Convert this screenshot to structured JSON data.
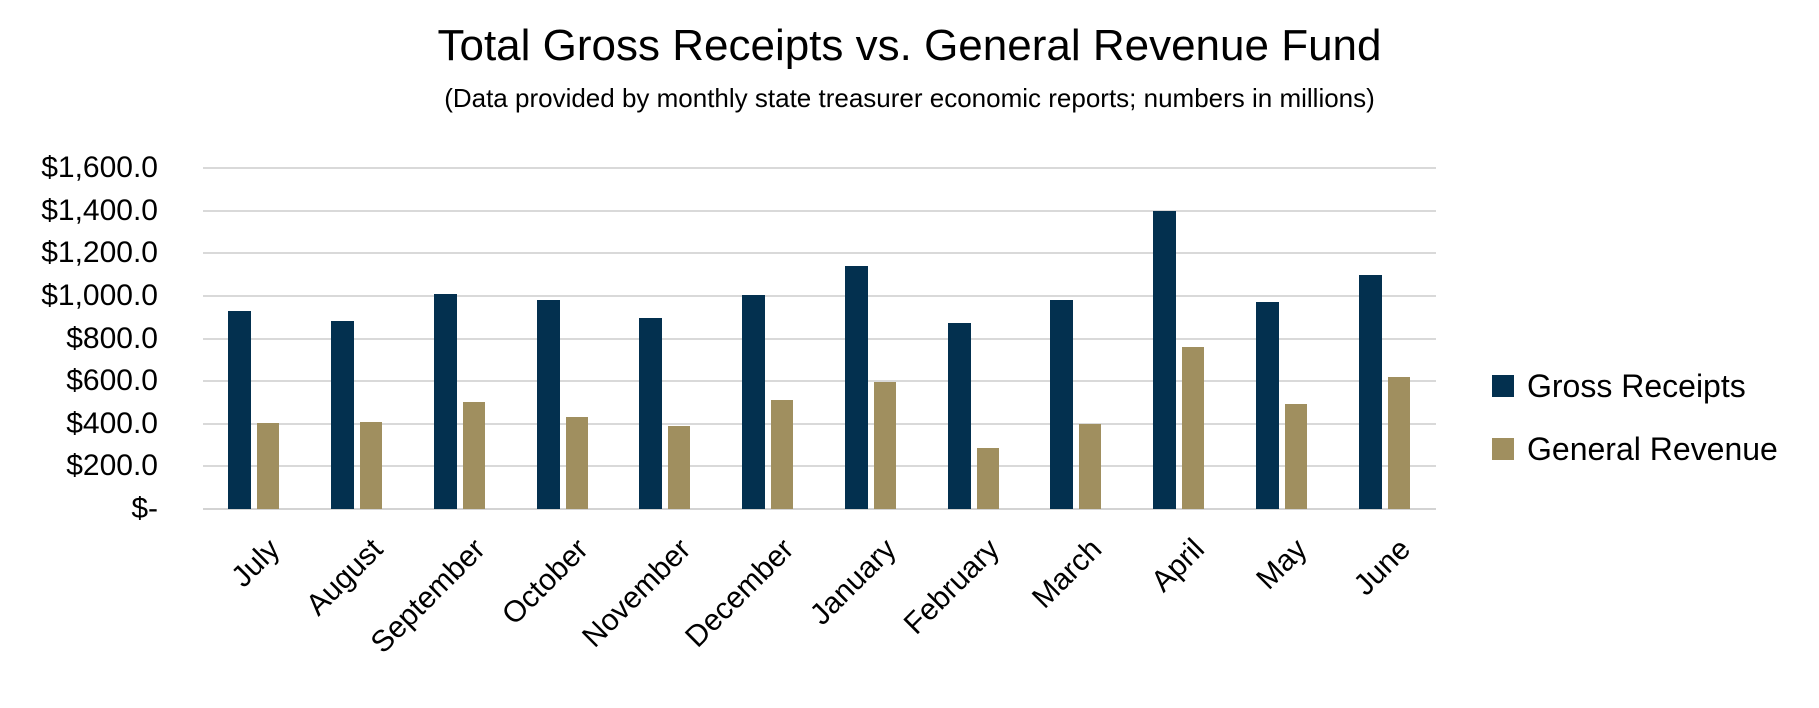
{
  "title": "Total Gross Receipts vs. General Revenue Fund",
  "subtitle": "(Data provided by monthly state treasurer economic reports; numbers in millions)",
  "legend": {
    "items": [
      {
        "label": "Gross Receipts",
        "color": "#03304F"
      },
      {
        "label": "General Revenue",
        "color": "#A08F5F"
      }
    ]
  },
  "colors": {
    "gross_receipts": "#03304F",
    "general_revenue": "#A08F5F",
    "gridline": "#D9D9D9",
    "axis_line": "#D3D3D3",
    "text": "#000000",
    "background": "#FFFFFF"
  },
  "chart_data": {
    "type": "bar",
    "title": "Total Gross Receipts vs. General Revenue Fund",
    "subtitle": "(Data provided by monthly state treasurer economic reports; numbers in millions)",
    "categories": [
      "July",
      "August",
      "September",
      "October",
      "November",
      "December",
      "January",
      "February",
      "March",
      "April",
      "May",
      "June"
    ],
    "series": [
      {
        "name": "Gross Receipts",
        "color": "#03304F",
        "values": [
          930,
          880,
          1010,
          980,
          895,
          1005,
          1140,
          875,
          980,
          1400,
          970,
          1100
        ]
      },
      {
        "name": "General Revenue",
        "color": "#A08F5F",
        "values": [
          405,
          410,
          500,
          430,
          390,
          510,
          595,
          285,
          400,
          760,
          495,
          620
        ]
      }
    ],
    "xlabel": "",
    "ylabel": "",
    "ylim": [
      0,
      1600
    ],
    "ytick_interval": 200,
    "ytick_labels": [
      "$-",
      "$200.0",
      "$400.0",
      "$600.0",
      "$800.0",
      "$1,000.0",
      "$1,200.0",
      "$1,400.0",
      "$1,600.0"
    ],
    "grid": true,
    "legend_position": "right"
  }
}
